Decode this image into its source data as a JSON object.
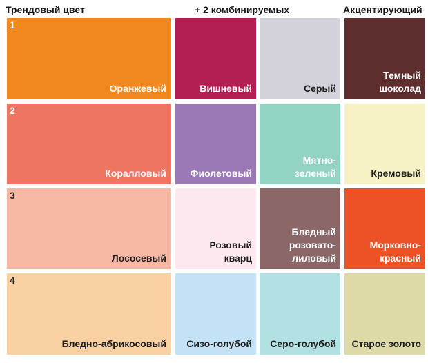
{
  "headers": {
    "trend": "Трендовый цвет",
    "combo": "+ 2 комбинируемых",
    "accent": "Акцентирующий"
  },
  "rows": [
    {
      "number": "1",
      "trend": {
        "label": "Оранжевый",
        "color": "#f0871f"
      },
      "combo1": {
        "label": "Вишневый",
        "color": "#b31e52"
      },
      "combo2": {
        "label": "Серый",
        "color": "#d3d2da"
      },
      "accent": {
        "label": "Темный\nшоколад",
        "color": "#5e2d2e"
      }
    },
    {
      "number": "2",
      "trend": {
        "label": "Коралловый",
        "color": "#ef7563"
      },
      "combo1": {
        "label": "Фиолетовый",
        "color": "#9b78b6"
      },
      "combo2": {
        "label": "Мятно-\nзеленый",
        "color": "#92d3c3"
      },
      "accent": {
        "label": "Кремовый",
        "color": "#f7f2c6"
      }
    },
    {
      "number": "3",
      "trend": {
        "label": "Лососевый",
        "color": "#f6b7a4"
      },
      "combo1": {
        "label": "Розовый\nкварц",
        "color": "#fde8f0"
      },
      "combo2": {
        "label": "Бледный\nрозовато-\nлиловый",
        "color": "#8b6767"
      },
      "accent": {
        "label": "Морковно-\nкрасный",
        "color": "#ec5225"
      }
    },
    {
      "number": "4",
      "trend": {
        "label": "Бледно-абрикосовый",
        "color": "#f8d0a2"
      },
      "combo1": {
        "label": "Сизо-голубой",
        "color": "#c4e2f5"
      },
      "combo2": {
        "label": "Серо-голубой",
        "color": "#b1e1e2"
      },
      "accent": {
        "label": "Старое золото",
        "color": "#dedaa7"
      }
    }
  ]
}
